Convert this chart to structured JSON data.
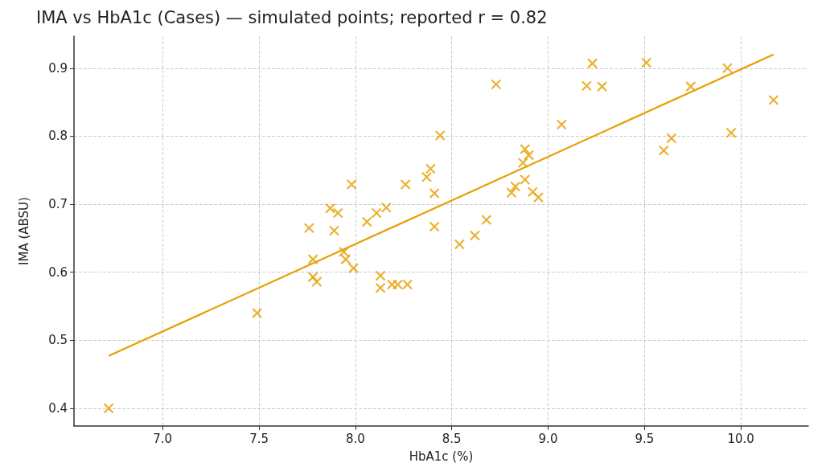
{
  "chart_data": {
    "type": "scatter",
    "title": "IMA vs HbA1c (Cases) — simulated points; reported r = 0.82",
    "xlabel": "HbA1c (%)",
    "ylabel": "IMA (ABSU)",
    "xlim": [
      6.54,
      10.35
    ],
    "xticks": [
      {
        "value": 7,
        "label": "7.0"
      },
      7.5,
      {
        "value": 8,
        "label": "8.0"
      },
      8.5,
      {
        "value": 9,
        "label": "9.0"
      },
      9.5,
      {
        "value": 10,
        "label": "10.0"
      }
    ],
    "ylim": [
      0.374,
      0.947
    ],
    "yticks": [
      0.4,
      0.5,
      0.6,
      0.7,
      0.8,
      0.9
    ],
    "grid": true,
    "marker": "cross",
    "series": [
      {
        "color": "#e69f00",
        "x": [
          6.72,
          7.49,
          7.76,
          7.78,
          7.78,
          7.8,
          7.87,
          7.91,
          7.89,
          7.94,
          7.95,
          7.99,
          7.98,
          8.06,
          8.11,
          8.16,
          8.13,
          8.13,
          8.19,
          8.22,
          8.27,
          8.26,
          8.37,
          8.39,
          8.41,
          8.41,
          8.44,
          8.54,
          8.62,
          8.68,
          8.73,
          8.81,
          8.83,
          8.87,
          8.88,
          8.9,
          8.88,
          8.92,
          8.95,
          9.07,
          9.2,
          9.23,
          9.28,
          9.51,
          9.6,
          9.64,
          9.74,
          9.93,
          9.95,
          10.17
        ],
        "values": [
          0.4,
          0.54,
          0.665,
          0.619,
          0.593,
          0.586,
          0.694,
          0.687,
          0.661,
          0.63,
          0.619,
          0.606,
          0.729,
          0.674,
          0.687,
          0.695,
          0.595,
          0.577,
          0.582,
          0.582,
          0.582,
          0.729,
          0.74,
          0.752,
          0.716,
          0.667,
          0.801,
          0.641,
          0.654,
          0.677,
          0.876,
          0.717,
          0.726,
          0.761,
          0.781,
          0.772,
          0.736,
          0.718,
          0.71,
          0.817,
          0.874,
          0.907,
          0.873,
          0.908,
          0.779,
          0.797,
          0.873,
          0.9,
          0.805,
          0.853
        ]
      },
      {
        "type": "line",
        "marker": "none",
        "color": "#e69f00",
        "x": [
          6.72,
          10.17
        ],
        "values": [
          0.477,
          0.92
        ]
      }
    ]
  }
}
